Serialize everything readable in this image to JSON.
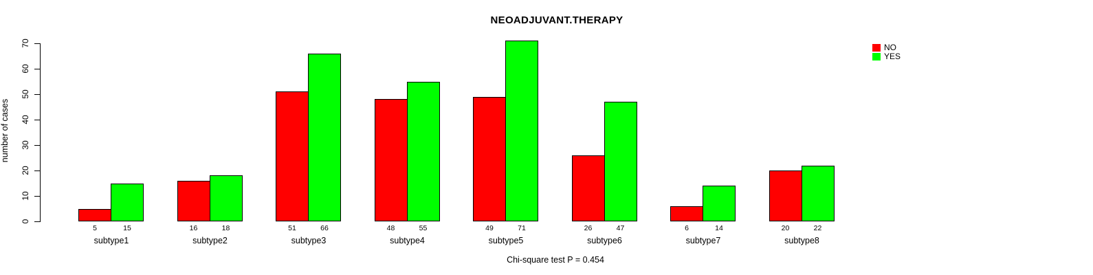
{
  "title": "NEOADJUVANT.THERAPY",
  "subtitle": "Chi-square test P = 0.454",
  "ylabel": "number of cases",
  "colors": {
    "no": "#ff0000",
    "yes": "#00ff00",
    "axis": "#000000",
    "background": "#ffffff"
  },
  "legend": {
    "position": "top-right",
    "items": [
      "NO",
      "YES"
    ]
  },
  "chart_data": {
    "type": "bar",
    "grouped": true,
    "title": "NEOADJUVANT.THERAPY",
    "annotation": "Chi-square test P = 0.454",
    "xlabel": "",
    "ylabel": "number of cases",
    "ylim": [
      0,
      70
    ],
    "yticks": [
      0,
      10,
      20,
      30,
      40,
      50,
      60,
      70
    ],
    "grid": false,
    "bar_value_labels": true,
    "legend_position": "top-right",
    "categories": [
      "subtype1",
      "subtype2",
      "subtype3",
      "subtype4",
      "subtype5",
      "subtype6",
      "subtype7",
      "subtype8"
    ],
    "series": [
      {
        "name": "NO",
        "color": "#ff0000",
        "values": [
          5,
          16,
          51,
          48,
          49,
          26,
          6,
          20
        ]
      },
      {
        "name": "YES",
        "color": "#00ff00",
        "values": [
          15,
          18,
          66,
          55,
          71,
          47,
          14,
          22
        ]
      }
    ]
  }
}
